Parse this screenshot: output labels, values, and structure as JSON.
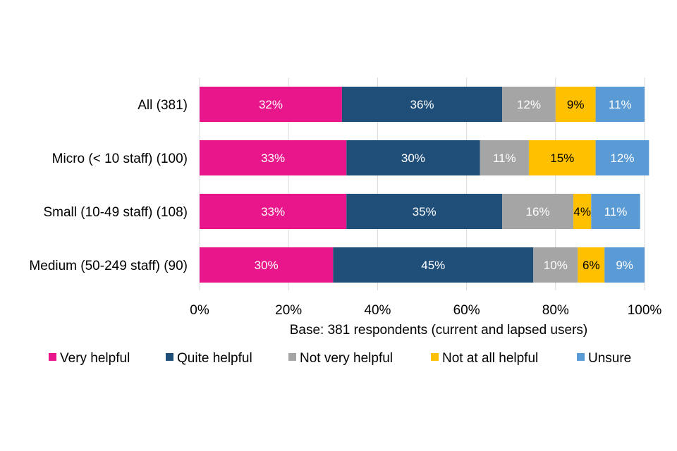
{
  "chart_data": {
    "type": "bar",
    "orientation": "horizontal",
    "stacked": true,
    "title": "",
    "xlabel": "Base: 381 respondents (current and lapsed users)",
    "ylabel": "",
    "xlim": [
      0,
      100
    ],
    "x_ticks": [
      "0%",
      "20%",
      "40%",
      "60%",
      "80%",
      "100%"
    ],
    "grid": true,
    "legend_position": "bottom",
    "categories": [
      "All (381)",
      "Micro (< 10 staff) (100)",
      "Small (10-49 staff) (108)",
      "Medium (50-249 staff) (90)"
    ],
    "series": [
      {
        "name": "Very helpful",
        "color": "#E8168A",
        "label_color": "#ffffff",
        "values": [
          32,
          33,
          33,
          30
        ],
        "labels": [
          "32%",
          "33%",
          "33%",
          "30%"
        ]
      },
      {
        "name": "Quite helpful",
        "color": "#1F4E79",
        "label_color": "#ffffff",
        "values": [
          36,
          30,
          35,
          45
        ],
        "labels": [
          "36%",
          "30%",
          "35%",
          "45%"
        ]
      },
      {
        "name": "Not very helpful",
        "color": "#A5A5A5",
        "label_color": "#ffffff",
        "values": [
          12,
          11,
          16,
          10
        ],
        "labels": [
          "12%",
          "11%",
          "16%",
          "10%"
        ]
      },
      {
        "name": "Not at all helpful",
        "color": "#FFC000",
        "label_color": "#000000",
        "values": [
          9,
          15,
          4,
          6
        ],
        "labels": [
          "9%",
          "15%",
          "4%",
          "6%"
        ]
      },
      {
        "name": "Unsure",
        "color": "#5B9BD5",
        "label_color": "#ffffff",
        "values": [
          11,
          12,
          11,
          9
        ],
        "labels": [
          "11%",
          "12%",
          "11%",
          "9%"
        ]
      }
    ]
  }
}
